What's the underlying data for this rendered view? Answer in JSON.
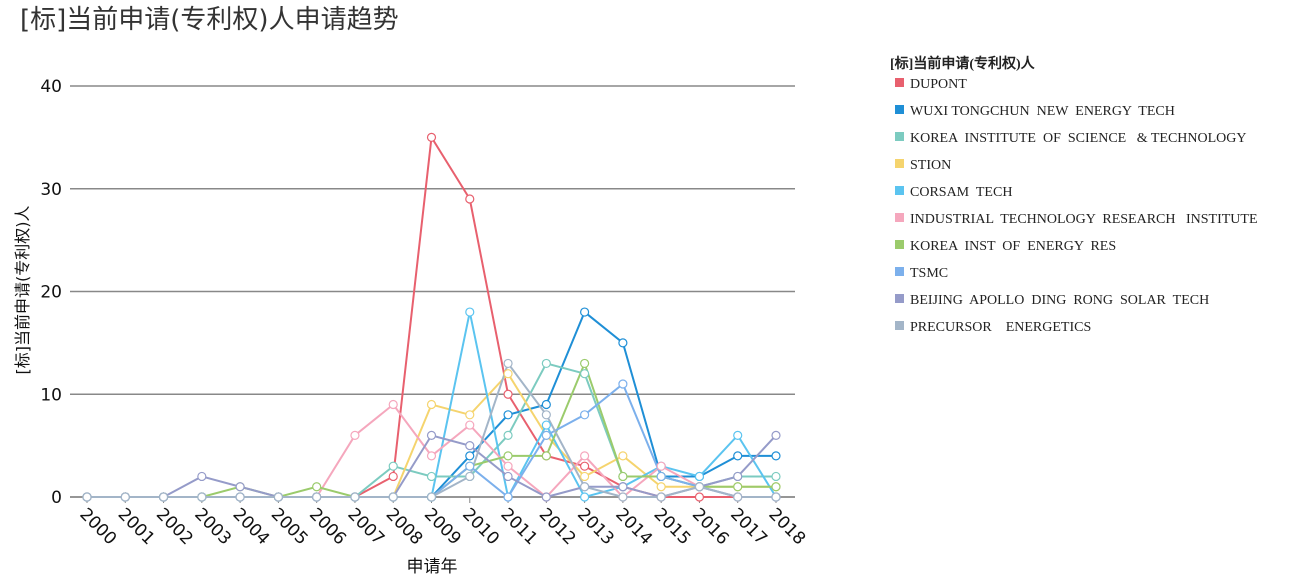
{
  "chart_data": {
    "type": "line",
    "title": "[标]当前申请(专利权)人申请趋势",
    "x_label": "申请年",
    "y_label": "[标]当前申请(专利权)人",
    "legend_title": "[标]当前申请(专利权)人",
    "categories": [
      "2000",
      "2001",
      "2002",
      "2003",
      "2004",
      "2005",
      "2006",
      "2007",
      "2008",
      "2009",
      "2010",
      "2011",
      "2012",
      "2013",
      "2014",
      "2015",
      "2016",
      "2017",
      "2018"
    ],
    "ylim": [
      0,
      40
    ],
    "yticks": [
      0,
      10,
      20,
      30,
      40
    ],
    "grid": true,
    "series": [
      {
        "name": "DUPONT",
        "color": "#e8606e",
        "values": [
          0,
          0,
          0,
          0,
          0,
          0,
          0,
          0,
          2,
          35,
          29,
          10,
          4,
          3,
          1,
          0,
          0,
          0,
          0
        ]
      },
      {
        "name": "WUXI TONGCHUN  NEW  ENERGY  TECH",
        "color": "#1f8fd6",
        "values": [
          0,
          0,
          0,
          0,
          0,
          0,
          0,
          0,
          0,
          0,
          4,
          8,
          9,
          18,
          15,
          2,
          2,
          4,
          4
        ]
      },
      {
        "name": "KOREA  INSTITUTE  OF  SCIENCE   & TECHNOLOGY",
        "color": "#7ccbc0",
        "values": [
          0,
          0,
          0,
          0,
          0,
          0,
          0,
          0,
          3,
          2,
          2,
          6,
          13,
          12,
          2,
          2,
          1,
          2,
          2
        ]
      },
      {
        "name": "STION",
        "color": "#f5d46e",
        "values": [
          0,
          0,
          0,
          0,
          0,
          0,
          0,
          0,
          0,
          9,
          8,
          12,
          6,
          2,
          4,
          1,
          1,
          1,
          1
        ]
      },
      {
        "name": "CORSAM  TECH",
        "color": "#5bc4f0",
        "values": [
          0,
          0,
          0,
          0,
          0,
          0,
          0,
          0,
          0,
          0,
          18,
          0,
          7,
          0,
          1,
          3,
          2,
          6,
          0
        ]
      },
      {
        "name": "INDUSTRIAL  TECHNOLOGY  RESEARCH   INSTITUTE",
        "color": "#f5a7bd",
        "values": [
          0,
          0,
          0,
          0,
          0,
          0,
          0,
          6,
          9,
          4,
          7,
          3,
          0,
          4,
          0,
          3,
          1,
          0,
          0
        ]
      },
      {
        "name": "KOREA  INST  OF  ENERGY  RES",
        "color": "#9bcb6c",
        "values": [
          0,
          0,
          0,
          0,
          1,
          0,
          1,
          0,
          0,
          0,
          3,
          4,
          4,
          13,
          2,
          2,
          1,
          1,
          1
        ]
      },
      {
        "name": "TSMC",
        "color": "#7cb0ec",
        "values": [
          0,
          0,
          0,
          0,
          0,
          0,
          0,
          0,
          0,
          0,
          3,
          0,
          6,
          8,
          11,
          2,
          1,
          0,
          0
        ]
      },
      {
        "name": "BEIJING  APOLLO  DING  RONG  SOLAR  TECH",
        "color": "#959bc9",
        "values": [
          0,
          0,
          0,
          2,
          1,
          0,
          0,
          0,
          0,
          6,
          5,
          2,
          0,
          1,
          1,
          0,
          1,
          2,
          6
        ]
      },
      {
        "name": "PRECURSOR    ENERGETICS",
        "color": "#a3b5c8",
        "values": [
          0,
          0,
          0,
          0,
          0,
          0,
          0,
          0,
          0,
          0,
          2,
          13,
          8,
          1,
          0,
          0,
          1,
          0,
          0
        ]
      }
    ]
  }
}
